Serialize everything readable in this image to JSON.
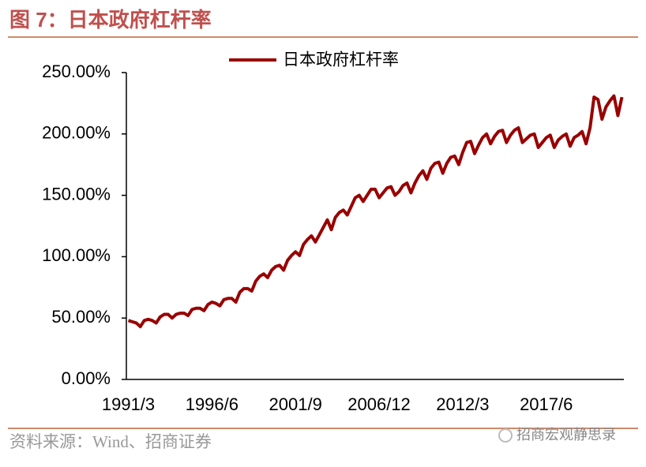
{
  "chart_data": {
    "type": "line",
    "title": "图 7：日本政府杠杆率",
    "source": "资料来源：Wind、招商证券",
    "watermark": "招商宏观静思录",
    "legend": "top",
    "categories": [
      "1991/3",
      null,
      null,
      null,
      null,
      null,
      null,
      null,
      null,
      null,
      null,
      null,
      null,
      null,
      null,
      null,
      null,
      null,
      null,
      null,
      null,
      "1996/6",
      null,
      null,
      null,
      null,
      null,
      null,
      null,
      null,
      null,
      null,
      null,
      null,
      null,
      null,
      null,
      null,
      null,
      null,
      null,
      null,
      "2001/9",
      null,
      null,
      null,
      null,
      null,
      null,
      null,
      null,
      null,
      null,
      null,
      null,
      null,
      null,
      null,
      null,
      null,
      null,
      null,
      null,
      "2006/12",
      null,
      null,
      null,
      null,
      null,
      null,
      null,
      null,
      null,
      null,
      null,
      null,
      null,
      null,
      null,
      null,
      null,
      null,
      null,
      null,
      "2012/3",
      null,
      null,
      null,
      null,
      null,
      null,
      null,
      null,
      null,
      null,
      null,
      null,
      null,
      null,
      null,
      null,
      null,
      null,
      null,
      null,
      "2017/6",
      null,
      null,
      null,
      null,
      null,
      null,
      null,
      null,
      null,
      null,
      null,
      null,
      null,
      null,
      null,
      null,
      null,
      null,
      null
    ],
    "series": [
      {
        "name": "日本政府杠杆率",
        "color": "#990000",
        "values": [
          48,
          47,
          46,
          43,
          48,
          49,
          48,
          46,
          51,
          53,
          53,
          50,
          53,
          54,
          54,
          52,
          57,
          58,
          58,
          56,
          61,
          63,
          62,
          60,
          65,
          66,
          66,
          63,
          71,
          74,
          74,
          72,
          80,
          84,
          86,
          83,
          89,
          92,
          93,
          89,
          97,
          101,
          104,
          101,
          110,
          114,
          117,
          112,
          118,
          124,
          130,
          122,
          132,
          136,
          138,
          134,
          141,
          148,
          150,
          145,
          150,
          155,
          155,
          148,
          152,
          156,
          157,
          150,
          153,
          158,
          160,
          152,
          160,
          166,
          170,
          163,
          172,
          176,
          177,
          168,
          176,
          181,
          182,
          175,
          185,
          193,
          194,
          184,
          191,
          197,
          200,
          192,
          198,
          202,
          203,
          193,
          199,
          203,
          205,
          193,
          196,
          199,
          200,
          189,
          193,
          197,
          199,
          189,
          195,
          198,
          200,
          190,
          197,
          199,
          202,
          192,
          205,
          230,
          228,
          212,
          222,
          227,
          231,
          215,
          230
        ]
      }
    ],
    "ylim": [
      0,
      250
    ],
    "yticks": [
      {
        "value": 0,
        "label": "0.00%"
      },
      {
        "value": 50,
        "label": "50.00%"
      },
      {
        "value": 100,
        "label": "100.00%"
      },
      {
        "value": 150,
        "label": "150.00%"
      },
      {
        "value": 200,
        "label": "200.00%"
      },
      {
        "value": 250,
        "label": "250.00%"
      }
    ],
    "grid": false
  }
}
